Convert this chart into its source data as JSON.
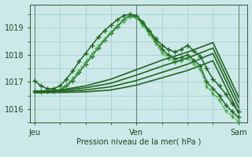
{
  "bg_color": "#cce8e8",
  "grid_color": "#99cccc",
  "xlabel": "Pression niveau de la mer( hPa )",
  "xtick_labels": [
    "Jeu",
    "Ven",
    "Sam"
  ],
  "xtick_positions": [
    0.0,
    48.0,
    96.0
  ],
  "yticks": [
    1016,
    1017,
    1018,
    1019
  ],
  "ylim": [
    1015.5,
    1019.85
  ],
  "xlim": [
    -2,
    100
  ],
  "series": [
    {
      "x": [
        0,
        3,
        6,
        9,
        12,
        15,
        18,
        21,
        24,
        27,
        30,
        33,
        36,
        39,
        42,
        45,
        48,
        51,
        54,
        57,
        60,
        63,
        66,
        69,
        72,
        75,
        78,
        81,
        84,
        87,
        90,
        93,
        96
      ],
      "y": [
        1017.05,
        1016.85,
        1016.75,
        1016.75,
        1016.85,
        1017.1,
        1017.4,
        1017.75,
        1018.05,
        1018.35,
        1018.65,
        1018.9,
        1019.1,
        1019.3,
        1019.45,
        1019.5,
        1019.45,
        1019.2,
        1018.9,
        1018.6,
        1018.35,
        1018.2,
        1018.1,
        1018.2,
        1018.35,
        1018.15,
        1017.95,
        1017.5,
        1017.1,
        1016.85,
        1016.55,
        1016.2,
        1015.9
      ],
      "style": "-",
      "marker": "+",
      "color": "#226622",
      "lw": 1.1,
      "ms": 4,
      "mew": 1.0
    },
    {
      "x": [
        0,
        3,
        6,
        9,
        12,
        15,
        18,
        21,
        24,
        27,
        30,
        33,
        36,
        39,
        42,
        45,
        48,
        51,
        54,
        57,
        60,
        63,
        66,
        69,
        72,
        75,
        78,
        81,
        84,
        87,
        90,
        93,
        96
      ],
      "y": [
        1016.65,
        1016.65,
        1016.65,
        1016.65,
        1016.7,
        1016.85,
        1017.05,
        1017.35,
        1017.65,
        1017.95,
        1018.25,
        1018.55,
        1018.8,
        1019.05,
        1019.3,
        1019.45,
        1019.4,
        1019.15,
        1018.85,
        1018.5,
        1018.2,
        1018.0,
        1017.85,
        1017.9,
        1018.0,
        1017.8,
        1017.6,
        1017.0,
        1016.75,
        1016.5,
        1016.15,
        1015.9,
        1015.7
      ],
      "style": "-",
      "marker": "+",
      "color": "#226622",
      "lw": 1.1,
      "ms": 4,
      "mew": 1.0
    },
    {
      "x": [
        0,
        3,
        6,
        9,
        12,
        15,
        18,
        21,
        24,
        27,
        30,
        33,
        36,
        39,
        42,
        45,
        48,
        51,
        54,
        57,
        60,
        63,
        66,
        69,
        72,
        75,
        78,
        81,
        84,
        87,
        90,
        93,
        96
      ],
      "y": [
        1016.6,
        1016.6,
        1016.62,
        1016.65,
        1016.72,
        1016.9,
        1017.15,
        1017.45,
        1017.75,
        1018.05,
        1018.35,
        1018.6,
        1018.85,
        1019.1,
        1019.3,
        1019.42,
        1019.38,
        1019.1,
        1018.8,
        1018.45,
        1018.1,
        1017.9,
        1017.75,
        1017.8,
        1017.9,
        1017.7,
        1017.5,
        1016.85,
        1016.6,
        1016.35,
        1015.95,
        1015.75,
        1015.55
      ],
      "style": "--",
      "marker": "+",
      "color": "#44aa44",
      "lw": 0.8,
      "ms": 3,
      "mew": 0.8
    },
    {
      "x": [
        0,
        3,
        6,
        9,
        12,
        15,
        18,
        21,
        24,
        27,
        30,
        33,
        36,
        39,
        42,
        45,
        48,
        51,
        54,
        57,
        60,
        63,
        66,
        69,
        72,
        75,
        78,
        81,
        84,
        87,
        90,
        93,
        96
      ],
      "y": [
        1016.6,
        1016.6,
        1016.62,
        1016.65,
        1016.72,
        1016.88,
        1017.1,
        1017.38,
        1017.68,
        1017.98,
        1018.28,
        1018.55,
        1018.78,
        1019.0,
        1019.22,
        1019.38,
        1019.35,
        1019.08,
        1018.75,
        1018.4,
        1018.05,
        1017.85,
        1017.7,
        1017.75,
        1017.85,
        1017.65,
        1017.45,
        1016.8,
        1016.55,
        1016.3,
        1015.9,
        1015.7,
        1015.5
      ],
      "style": ":",
      "marker": "+",
      "color": "#44aa44",
      "lw": 0.8,
      "ms": 3,
      "mew": 0.8
    },
    {
      "x": [
        0,
        12,
        24,
        36,
        48,
        60,
        72,
        84,
        96
      ],
      "y": [
        1016.65,
        1016.7,
        1016.85,
        1017.1,
        1017.45,
        1017.8,
        1018.1,
        1018.45,
        1016.45
      ],
      "style": "-",
      "marker": null,
      "color": "#226622",
      "lw": 1.2,
      "ms": 0,
      "mew": 0
    },
    {
      "x": [
        0,
        12,
        24,
        36,
        48,
        60,
        72,
        84,
        96
      ],
      "y": [
        1016.62,
        1016.67,
        1016.78,
        1016.95,
        1017.25,
        1017.58,
        1017.88,
        1018.25,
        1016.25
      ],
      "style": "-",
      "marker": null,
      "color": "#226622",
      "lw": 1.2,
      "ms": 0,
      "mew": 0
    },
    {
      "x": [
        0,
        12,
        24,
        36,
        48,
        60,
        72,
        84,
        96
      ],
      "y": [
        1016.6,
        1016.63,
        1016.7,
        1016.82,
        1017.05,
        1017.35,
        1017.65,
        1018.05,
        1016.05
      ],
      "style": "-",
      "marker": null,
      "color": "#226622",
      "lw": 1.2,
      "ms": 0,
      "mew": 0
    },
    {
      "x": [
        0,
        12,
        24,
        36,
        48,
        60,
        72,
        84,
        96
      ],
      "y": [
        1016.6,
        1016.61,
        1016.63,
        1016.7,
        1016.88,
        1017.15,
        1017.42,
        1017.78,
        1015.85
      ],
      "style": "-",
      "marker": null,
      "color": "#226622",
      "lw": 1.2,
      "ms": 0,
      "mew": 0
    }
  ]
}
